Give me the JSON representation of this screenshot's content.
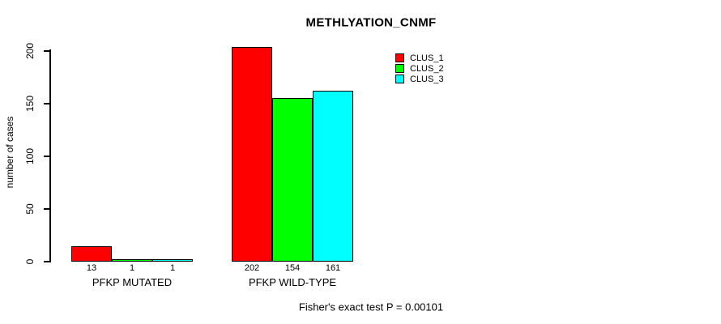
{
  "title": "METHLYATION_CNMF",
  "chart_data": {
    "type": "bar",
    "title": "METHLYATION_CNMF",
    "xlabel": "",
    "ylabel": "number of cases",
    "categories": [
      "PFKP MUTATED",
      "PFKP WILD-TYPE"
    ],
    "series": [
      {
        "name": "CLUS_1",
        "color": "#ff0000",
        "values": [
          13,
          202
        ]
      },
      {
        "name": "CLUS_2",
        "color": "#00ff00",
        "values": [
          1,
          154
        ]
      },
      {
        "name": "CLUS_3",
        "color": "#00ffff",
        "values": [
          1,
          161
        ]
      }
    ],
    "yticks": [
      0,
      50,
      100,
      150,
      200
    ],
    "ylim": [
      0,
      202
    ],
    "grid": false,
    "bar_value_labels_shown": true,
    "legend": {
      "position": "top-right-inside",
      "entries": [
        "CLUS_1",
        "CLUS_2",
        "CLUS_3"
      ]
    },
    "annotation": "Fisher's exact test P = 0.00101"
  },
  "colors": {
    "background": "#ffffff",
    "text": "#000000",
    "axis": "#000000",
    "bar_border": "#000000"
  }
}
